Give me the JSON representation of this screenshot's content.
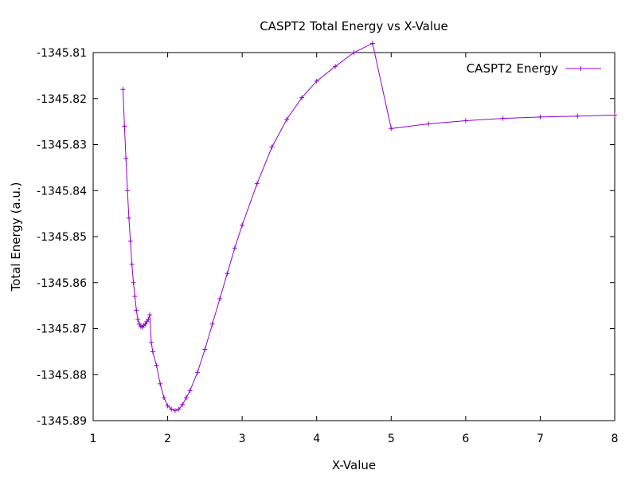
{
  "chart_data": {
    "type": "line",
    "title": "CASPT2 Total Energy vs X-Value",
    "xlabel": "X-Value",
    "ylabel": "Total Energy (a.u.)",
    "xlim": [
      1,
      8
    ],
    "ylim": [
      -1345.89,
      -1345.81
    ],
    "xticks": [
      "1",
      "2",
      "3",
      "4",
      "5",
      "6",
      "7",
      "8"
    ],
    "yticks": [
      "-1345.81",
      "-1345.82",
      "-1345.83",
      "-1345.84",
      "-1345.85",
      "-1345.86",
      "-1345.87",
      "-1345.88",
      "-1345.89"
    ],
    "legend_position": "top-right",
    "grid": false,
    "series": [
      {
        "name": "CASPT2 Energy",
        "color": "#9400d3",
        "marker": "plus",
        "x": [
          1.4,
          1.42,
          1.44,
          1.46,
          1.48,
          1.5,
          1.52,
          1.54,
          1.56,
          1.58,
          1.6,
          1.62,
          1.64,
          1.66,
          1.68,
          1.7,
          1.72,
          1.74,
          1.76,
          1.78,
          1.8,
          1.85,
          1.9,
          1.95,
          2.0,
          2.05,
          2.1,
          2.15,
          2.2,
          2.25,
          2.3,
          2.4,
          2.5,
          2.6,
          2.7,
          2.8,
          2.9,
          3.0,
          3.2,
          3.4,
          3.6,
          3.8,
          4.0,
          4.25,
          4.5,
          4.75,
          5.0,
          5.5,
          6.0,
          6.5,
          7.0,
          7.5,
          8.0
        ],
        "y": [
          -1345.818,
          -1345.826,
          -1345.833,
          -1345.84,
          -1345.846,
          -1345.851,
          -1345.856,
          -1345.86,
          -1345.863,
          -1345.866,
          -1345.868,
          -1345.869,
          -1345.8695,
          -1345.8697,
          -1345.8693,
          -1345.869,
          -1345.8685,
          -1345.868,
          -1345.867,
          -1345.873,
          -1345.875,
          -1345.878,
          -1345.882,
          -1345.885,
          -1345.8868,
          -1345.8875,
          -1345.8878,
          -1345.8875,
          -1345.8865,
          -1345.885,
          -1345.8835,
          -1345.8795,
          -1345.8745,
          -1345.869,
          -1345.8635,
          -1345.858,
          -1345.8525,
          -1345.8475,
          -1345.8385,
          -1345.8305,
          -1345.8245,
          -1345.8198,
          -1345.8162,
          -1345.813,
          -1345.81,
          -1345.808,
          -1345.8265,
          -1345.8255,
          -1345.8248,
          -1345.8243,
          -1345.824,
          -1345.8238,
          -1345.8236
        ]
      }
    ]
  }
}
